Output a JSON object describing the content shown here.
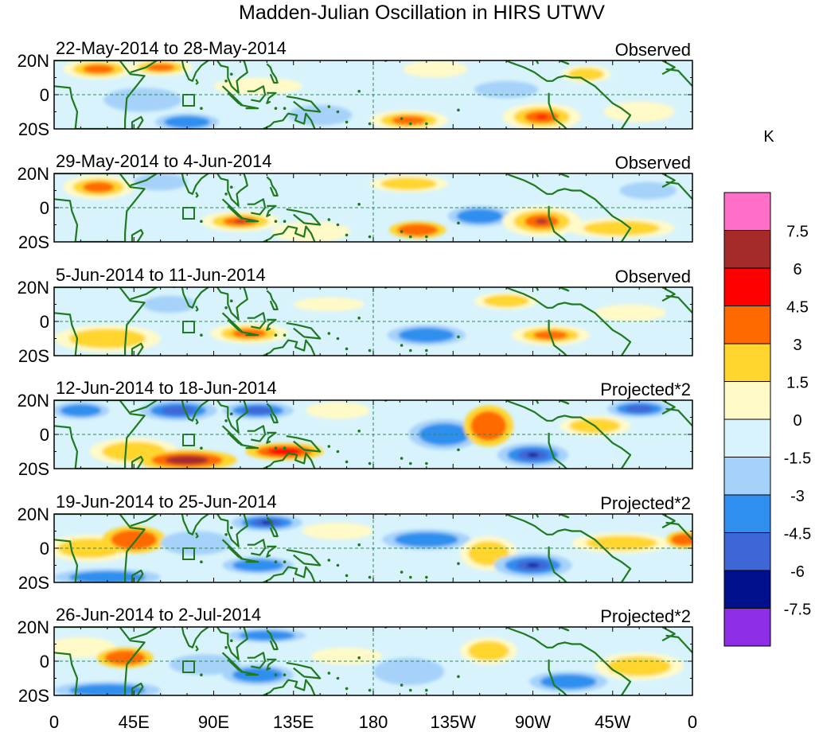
{
  "title": "Madden-Julian Oscillation in HIRS UTWV",
  "y_ticks": [
    "20N",
    "0",
    "20S"
  ],
  "x_ticks": [
    "0",
    "45E",
    "90E",
    "135E",
    "180",
    "135W",
    "90W",
    "45W",
    "0"
  ],
  "panels": [
    {
      "date": "22-May-2014 to 28-May-2014",
      "label": "Observed"
    },
    {
      "date": "29-May-2014 to 4-Jun-2014",
      "label": "Observed"
    },
    {
      "date": "5-Jun-2014 to 11-Jun-2014",
      "label": "Observed"
    },
    {
      "date": "12-Jun-2014 to 18-Jun-2014",
      "label": "Projected*2"
    },
    {
      "date": "19-Jun-2014 to 25-Jun-2014",
      "label": "Projected*2"
    },
    {
      "date": "26-Jun-2014 to 2-Jul-2014",
      "label": "Projected*2"
    }
  ],
  "colorbar": {
    "unit": "K",
    "colors_top_to_bottom": [
      "#ff6ec7",
      "#a52a2a",
      "#ff0000",
      "#ff6a00",
      "#ffd52e",
      "#fffac8",
      "#d8f3fc",
      "#a6d2fa",
      "#2f8fee",
      "#3f66d6",
      "#000f8c",
      "#8e2de6"
    ],
    "labels_top_to_bottom": [
      "7.5",
      "6",
      "4.5",
      "3",
      "1.5",
      "0",
      "-1.5",
      "-3",
      "-4.5",
      "-6",
      "-7.5"
    ]
  },
  "colors": {
    "background": "#d8f3fc",
    "coast": "#1f7a1f",
    "grid": "#2e8b57"
  }
}
